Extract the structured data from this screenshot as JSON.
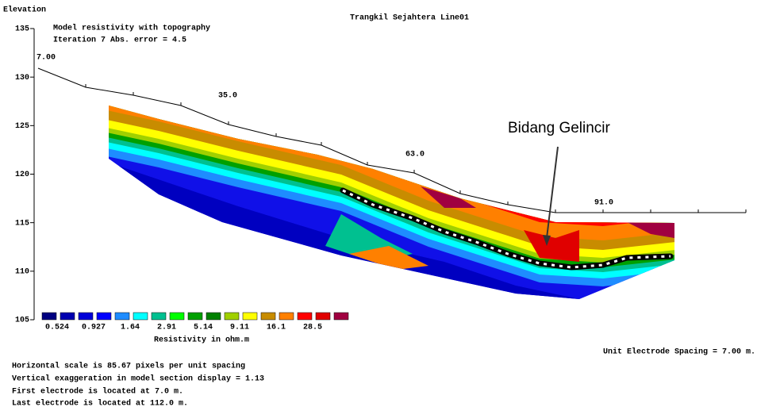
{
  "title": "Trangkil Sejahtera Line01",
  "model": {
    "heading": "Model resistivity with topography",
    "iteration": "Iteration 7 Abs. error = 4.5"
  },
  "elevation_axis": {
    "label": "Elevation",
    "ticks": [
      135,
      130,
      125,
      120,
      115,
      110,
      105
    ]
  },
  "distance_labels": [
    "7.00",
    "35.0",
    "63.0",
    "91.0"
  ],
  "annotation": "Bidang Gelincir",
  "legend": {
    "colors": [
      "#000080",
      "#0000b0",
      "#0000d8",
      "#0000ff",
      "#1e8cff",
      "#00ffff",
      "#00c090",
      "#00ff00",
      "#00a000",
      "#008000",
      "#a0d000",
      "#ffff00",
      "#c88c00",
      "#ff8000",
      "#ff0000",
      "#e00000",
      "#a00040"
    ],
    "labels": [
      "0.524",
      "0.927",
      "1.64",
      "2.91",
      "5.14",
      "9.11",
      "16.1",
      "28.5"
    ],
    "title": "Resistivity in ohm.m"
  },
  "unit_spacing": "Unit Electrode Spacing = 7.00 m.",
  "notes": [
    "Horizontal scale is 85.67 pixels per unit spacing",
    "Vertical exaggeration in model section display = 1.13",
    "First electrode is located at 7.0  m.",
    "Last electrode is located at 112.0 m."
  ]
}
